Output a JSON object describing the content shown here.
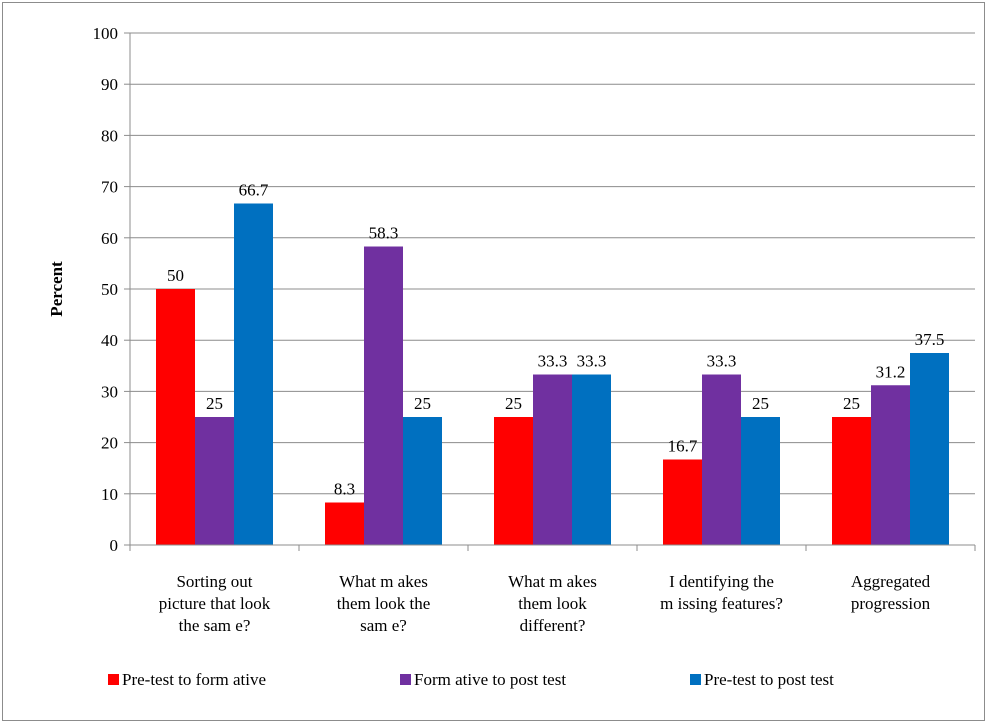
{
  "chart_data": {
    "type": "bar",
    "title": "",
    "xlabel": "",
    "ylabel": "Percent",
    "ylim": [
      0,
      100
    ],
    "ytick_step": 10,
    "grid": true,
    "legend_position": "bottom",
    "categories": [
      [
        "Sorting out",
        "picture that look",
        "the sam e?"
      ],
      [
        "What m akes",
        "them look the",
        "sam e?"
      ],
      [
        "What m akes",
        "them look",
        "different?"
      ],
      [
        "I dentifying the",
        "m issing features?"
      ],
      [
        "Aggregated",
        "progression"
      ]
    ],
    "series": [
      {
        "name": "Pre-test to form ative",
        "color": "#ff0000",
        "values": [
          50,
          8.3,
          25,
          16.7,
          25
        ]
      },
      {
        "name": "Form ative to post test",
        "color": "#7030a0",
        "values": [
          25,
          58.3,
          33.3,
          33.3,
          31.2
        ]
      },
      {
        "name": "Pre-test to post test",
        "color": "#0070c0",
        "values": [
          66.7,
          25,
          33.3,
          25,
          37.5
        ]
      }
    ]
  }
}
